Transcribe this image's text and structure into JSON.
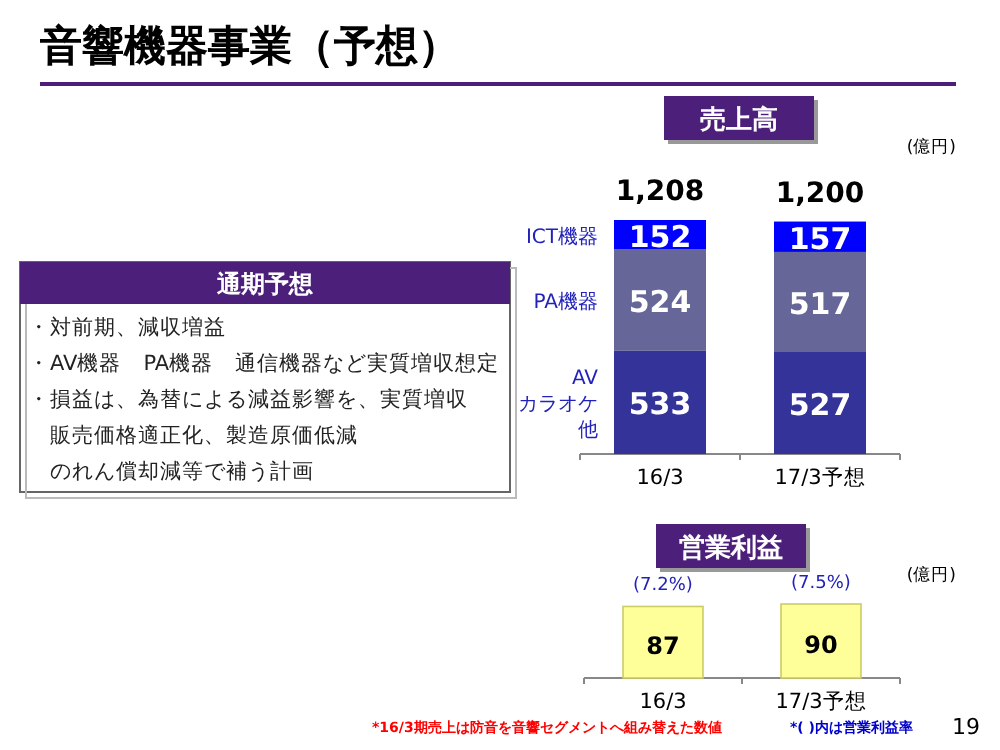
{
  "chart_data": [
    {
      "type": "other",
      "title": "音響機器事業（予想）",
      "subtitle": "通期予想",
      "annotations": [
        "・対前期、減収増益",
        "・AV機器　PA機器　通信機器など実質増収想定",
        "・損益は、為替による減益影響を、実質増収",
        "　販売価格適正化、製造原価低減",
        "　のれん償却減等で補う計画",
        "19"
      ]
    },
    {
      "type": "bar",
      "title": "売上高",
      "ylabel": "(億円)",
      "stacked": true,
      "data_labels": true,
      "categories": [
        "16/3",
        "17/3予想"
      ],
      "series": [
        {
          "name": "AVカラオケ他",
          "color": "#333399",
          "values": [
            533,
            527
          ]
        },
        {
          "name": "PA機器",
          "color": "#666699",
          "values": [
            524,
            517
          ]
        },
        {
          "name": "ICT機器",
          "color": "#0000ff",
          "values": [
            152,
            157
          ]
        }
      ],
      "totals": [
        "1,208",
        "1,200"
      ]
    },
    {
      "type": "bar",
      "title": "営業利益",
      "ylabel": "(億円)",
      "data_labels": true,
      "categories": [
        "16/3",
        "17/3予想"
      ],
      "values": [
        87,
        90
      ],
      "color": "#ffff99",
      "annotations": [
        "(7.2%)",
        "(7.5%)",
        "*16/3期売上は防音を音響セグメントへ組み替えた数値",
        "*( )内は営業利益率"
      ]
    }
  ]
}
